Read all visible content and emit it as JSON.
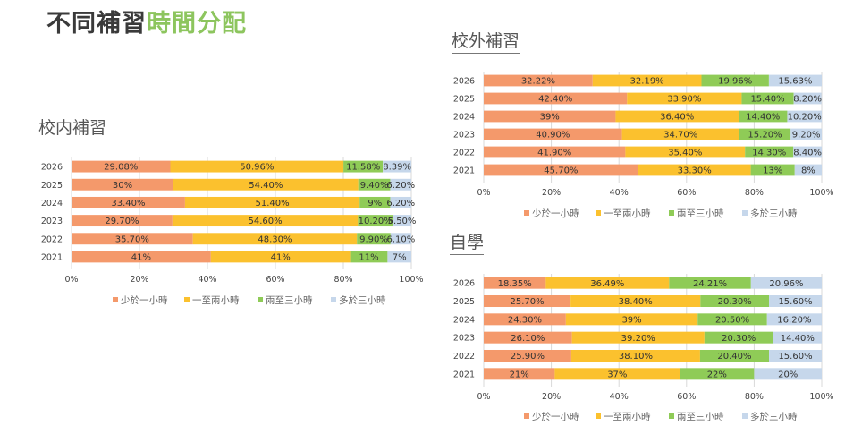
{
  "header": {
    "title_part1": "不同補習",
    "title_part2": "時間分配"
  },
  "colors": {
    "series": [
      "#f4996b",
      "#fbc12e",
      "#8fcb57",
      "#c6d7eb"
    ],
    "title_dark": "#3a3a3a",
    "title_green": "#8dc55e"
  },
  "chart_data": [
    {
      "id": "school",
      "type": "bar",
      "orientation": "horizontal",
      "stacked": "percent",
      "title": "校内補習",
      "categories": [
        "2026",
        "2025",
        "2024",
        "2023",
        "2022",
        "2021"
      ],
      "series": [
        {
          "name": "少於一小時",
          "values": [
            29.08,
            30,
            33.4,
            29.7,
            35.7,
            41
          ],
          "labels": [
            "29.08%",
            "30%",
            "33.40%",
            "29.70%",
            "35.70%",
            "41%"
          ]
        },
        {
          "name": "一至兩小時",
          "values": [
            50.96,
            54.4,
            51.4,
            54.6,
            48.3,
            41
          ],
          "labels": [
            "50.96%",
            "54.40%",
            "51.40%",
            "54.60%",
            "48.30%",
            "41%"
          ]
        },
        {
          "name": "兩至三小時",
          "values": [
            11.58,
            9.4,
            9,
            10.2,
            9.9,
            11
          ],
          "labels": [
            "11.58%",
            "9.40%",
            "9%",
            "10.20%",
            "9.90%",
            "11%"
          ]
        },
        {
          "name": "多於三小時",
          "values": [
            8.39,
            6.2,
            6.2,
            5.5,
            6.1,
            7
          ],
          "labels": [
            "8.39%",
            "6.20%",
            "6.20%",
            "5.50%",
            "6.10%",
            "7%"
          ]
        }
      ],
      "xticks": [
        "0%",
        "20%",
        "40%",
        "60%",
        "80%",
        "100%"
      ],
      "xlim": [
        0,
        100
      ],
      "grid": true,
      "legend": "bottom"
    },
    {
      "id": "outside",
      "type": "bar",
      "orientation": "horizontal",
      "stacked": "percent",
      "title": "校外補習",
      "categories": [
        "2026",
        "2025",
        "2024",
        "2023",
        "2022",
        "2021"
      ],
      "series": [
        {
          "name": "少於一小時",
          "values": [
            32.22,
            42.4,
            39,
            40.9,
            41.9,
            45.7
          ],
          "labels": [
            "32.22%",
            "42.40%",
            "39%",
            "40.90%",
            "41.90%",
            "45.70%"
          ]
        },
        {
          "name": "一至兩小時",
          "values": [
            32.19,
            33.9,
            36.4,
            34.7,
            35.4,
            33.3
          ],
          "labels": [
            "32.19%",
            "33.90%",
            "36.40%",
            "34.70%",
            "35.40%",
            "33.30%"
          ]
        },
        {
          "name": "兩至三小時",
          "values": [
            19.96,
            15.4,
            14.4,
            15.2,
            14.3,
            13
          ],
          "labels": [
            "19.96%",
            "15.40%",
            "14.40%",
            "15.20%",
            "14.30%",
            "13%"
          ]
        },
        {
          "name": "多於三小時",
          "values": [
            15.63,
            8.2,
            10.2,
            9.2,
            8.4,
            8
          ],
          "labels": [
            "15.63%",
            "8.20%",
            "10.20%",
            "9.20%",
            "8.40%",
            "8%"
          ]
        }
      ],
      "xticks": [
        "0%",
        "20%",
        "40%",
        "60%",
        "80%",
        "100%"
      ],
      "xlim": [
        0,
        100
      ],
      "grid": true,
      "legend": "bottom"
    },
    {
      "id": "self",
      "type": "bar",
      "orientation": "horizontal",
      "stacked": "percent",
      "title": "自學",
      "categories": [
        "2026",
        "2025",
        "2024",
        "2023",
        "2022",
        "2021"
      ],
      "series": [
        {
          "name": "少於一小時",
          "values": [
            18.35,
            25.7,
            24.3,
            26.1,
            25.9,
            21
          ],
          "labels": [
            "18.35%",
            "25.70%",
            "24.30%",
            "26.10%",
            "25.90%",
            "21%"
          ]
        },
        {
          "name": "一至兩小時",
          "values": [
            36.49,
            38.4,
            39,
            39.2,
            38.1,
            37
          ],
          "labels": [
            "36.49%",
            "38.40%",
            "39%",
            "39.20%",
            "38.10%",
            "37%"
          ]
        },
        {
          "name": "兩至三小時",
          "values": [
            24.21,
            20.3,
            20.5,
            20.3,
            20.4,
            22
          ],
          "labels": [
            "24.21%",
            "20.30%",
            "20.50%",
            "20.30%",
            "20.40%",
            "22%"
          ]
        },
        {
          "name": "多於三小時",
          "values": [
            20.96,
            15.6,
            16.2,
            14.4,
            15.6,
            20
          ],
          "labels": [
            "20.96%",
            "15.60%",
            "16.20%",
            "14.40%",
            "15.60%",
            "20%"
          ]
        }
      ],
      "xticks": [
        "0%",
        "20%",
        "40%",
        "60%",
        "80%",
        "100%"
      ],
      "xlim": [
        0,
        100
      ],
      "grid": true,
      "legend": "bottom"
    }
  ]
}
